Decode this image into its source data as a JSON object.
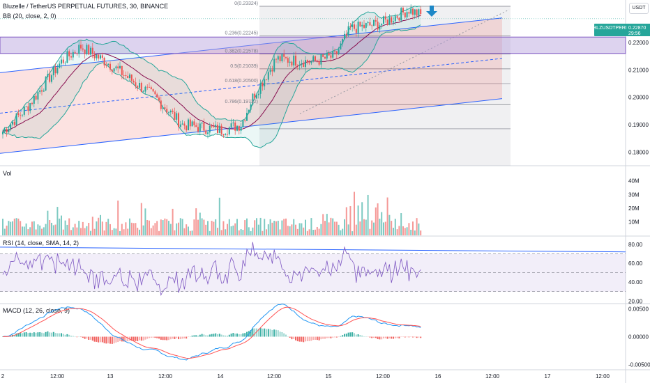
{
  "header": {
    "title": "Bluzelle / TetherUS PERPETUAL FUTURES, 30, BINANCE",
    "bb_label": "BB (20, close, 2, 0)",
    "currency": "USDT"
  },
  "price_badge": {
    "symbol": "BLZUSDTPERP",
    "price": "0.22870",
    "countdown": "29:56"
  },
  "colors": {
    "up": "#26a69a",
    "down": "#ef5350",
    "bb_band": "#26a69a",
    "bb_basis": "#880e4f",
    "channel": "#2962ff",
    "zone_fill": "#b39ddb",
    "rsi_line": "#7e57c2",
    "macd_line": "#2196f3",
    "signal_line": "#ff5252",
    "arrow": "#1e88c7"
  },
  "chart_data": [
    {
      "type": "candlestick",
      "title": "Bluzelle / TetherUS PERPETUAL FUTURES, 30, BINANCE",
      "ylim": [
        0.175,
        0.2335
      ],
      "y_ticks": [
        "0.22000",
        "0.21000",
        "0.20000",
        "0.19000",
        "0.18000"
      ],
      "x_ticks": [
        "2",
        "12:00",
        "13",
        "12:00",
        "14",
        "12:00",
        "15",
        "12:00",
        "16",
        "12:00",
        "17",
        "12:00"
      ],
      "fib_levels": [
        {
          "label": "0(0.23324)",
          "value": 0.23324
        },
        {
          "label": "0.236(0.22245)",
          "value": 0.22245
        },
        {
          "label": "0.382(0.21578)",
          "value": 0.21578
        },
        {
          "label": "0.5(0.21039)",
          "value": 0.21039
        },
        {
          "label": "0.618(0.20500)",
          "value": 0.205
        },
        {
          "label": "0.786(0.19732)",
          "value": 0.19732
        }
      ],
      "last_price": 0.2287,
      "indicator": "BB (20, close, 2, 0)"
    },
    {
      "type": "bar",
      "title": "Vol",
      "y_ticks": [
        "40M",
        "30M",
        "20M",
        "10M"
      ],
      "ylim": [
        0,
        48
      ]
    },
    {
      "type": "line",
      "title": "RSI (14, close, SMA, 14, 2)",
      "y_ticks": [
        "80.00",
        "60.00",
        "40.00",
        "20.00"
      ],
      "ylim": [
        18,
        88
      ],
      "band": [
        30,
        70
      ]
    },
    {
      "type": "line",
      "title": "MACD (12, 26, close, 9)",
      "y_ticks": [
        "0.00500",
        "0.00000",
        "-0.00500"
      ],
      "ylim": [
        -0.0058,
        0.0058
      ]
    }
  ]
}
